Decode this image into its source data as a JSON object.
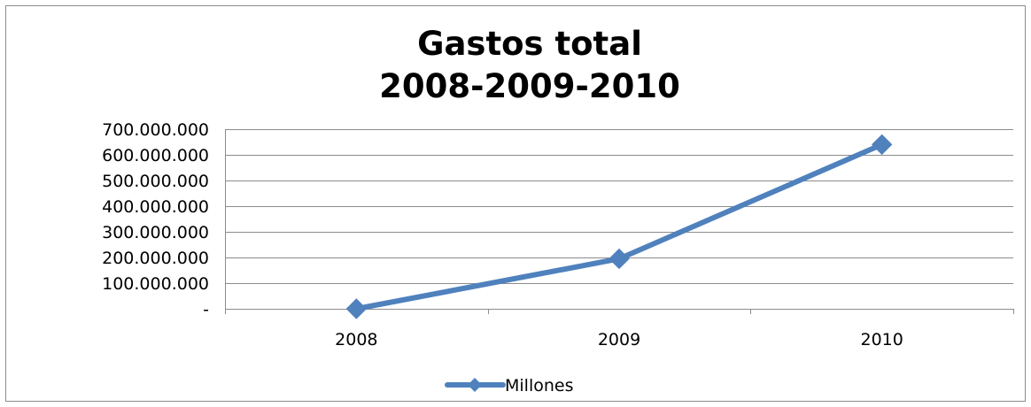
{
  "chart_data": {
    "type": "line",
    "title": "Gastos total\n2008-2009-2010",
    "title_lines": [
      "Gastos total",
      "2008-2009-2010"
    ],
    "categories": [
      "2008",
      "2009",
      "2010"
    ],
    "series": [
      {
        "name": "Millones",
        "values": [
          0,
          195000000,
          640000000
        ],
        "color": "#4f81bd"
      }
    ],
    "ylim": [
      0,
      700000000
    ],
    "yticks": [
      0,
      100000000,
      200000000,
      300000000,
      400000000,
      500000000,
      600000000,
      700000000
    ],
    "ytick_labels": [
      "-",
      "100.000.000",
      "200.000.000",
      "300.000.000",
      "400.000.000",
      "500.000.000",
      "600.000.000",
      "700.000.000"
    ],
    "grid": true,
    "legend_position": "bottom",
    "marker": "diamond"
  }
}
